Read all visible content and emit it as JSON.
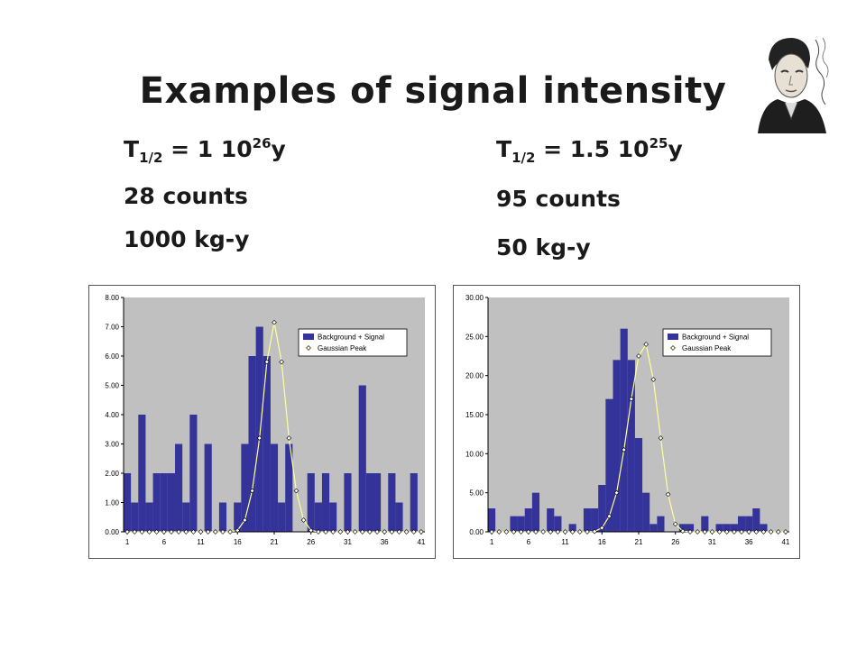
{
  "title": "Examples of signal intensity",
  "left_stats": {
    "t_label": "T",
    "t_sub": "1/2",
    "t_eq": " = 1 10",
    "t_exp": "26",
    "t_unit": "y",
    "counts": "28 counts",
    "exposure": "1000 kg-y"
  },
  "right_stats": {
    "t_label": "T",
    "t_sub": "1/2",
    "t_eq": " = 1.5 10",
    "t_exp": "25",
    "t_unit": "y",
    "counts": "95 counts",
    "exposure": "50 kg-y"
  },
  "portrait_icon": "person-portrait-with-signature",
  "colors": {
    "bar": "#333399",
    "plot_bg": "#c0c0c0",
    "gaussian_line": "#ffff99"
  },
  "chart_data": [
    {
      "type": "bar",
      "x": [
        1,
        2,
        3,
        4,
        5,
        6,
        7,
        8,
        9,
        10,
        11,
        12,
        13,
        14,
        15,
        16,
        17,
        18,
        19,
        20,
        21,
        22,
        23,
        24,
        25,
        26,
        27,
        28,
        29,
        30,
        31,
        32,
        33,
        34,
        35,
        36,
        37,
        38,
        39,
        40,
        41
      ],
      "xticks": [
        "1",
        "6",
        "11",
        "16",
        "21",
        "26",
        "31",
        "36",
        "41"
      ],
      "yticks": [
        "0.00",
        "1.00",
        "2.00",
        "3.00",
        "4.00",
        "5.00",
        "6.00",
        "7.00",
        "8.00"
      ],
      "ylim": [
        0,
        8
      ],
      "legend_position": "top-right",
      "series": [
        {
          "name": "Background + Signal",
          "kind": "bar",
          "values": [
            2,
            1,
            4,
            1,
            2,
            2,
            2,
            3,
            1,
            4,
            0,
            3,
            0,
            1,
            0,
            1,
            3,
            6,
            7,
            6,
            3,
            1,
            3,
            0,
            0,
            2,
            1,
            2,
            1,
            0,
            2,
            0,
            5,
            2,
            2,
            0,
            2,
            1,
            0,
            2,
            0
          ]
        },
        {
          "name": "Gaussian Peak",
          "kind": "line-markers",
          "values": [
            0,
            0,
            0,
            0,
            0,
            0,
            0,
            0,
            0,
            0,
            0,
            0,
            0,
            0,
            0,
            0.05,
            0.4,
            1.4,
            3.2,
            5.8,
            7.15,
            5.8,
            3.2,
            1.4,
            0.4,
            0.05,
            0,
            0,
            0,
            0,
            0,
            0,
            0,
            0,
            0,
            0,
            0,
            0,
            0,
            0,
            0
          ]
        }
      ]
    },
    {
      "type": "bar",
      "x": [
        1,
        2,
        3,
        4,
        5,
        6,
        7,
        8,
        9,
        10,
        11,
        12,
        13,
        14,
        15,
        16,
        17,
        18,
        19,
        20,
        21,
        22,
        23,
        24,
        25,
        26,
        27,
        28,
        29,
        30,
        31,
        32,
        33,
        34,
        35,
        36,
        37,
        38,
        39,
        40,
        41
      ],
      "xticks": [
        "1",
        "6",
        "11",
        "16",
        "21",
        "26",
        "31",
        "36",
        "41"
      ],
      "yticks": [
        "0.00",
        "5.00",
        "10.00",
        "15.00",
        "20.00",
        "25.00",
        "30.00"
      ],
      "ylim": [
        0,
        30
      ],
      "legend_position": "top-right",
      "series": [
        {
          "name": "Background + Signal",
          "kind": "bar",
          "values": [
            3,
            0,
            0,
            2,
            2,
            3,
            5,
            0,
            3,
            2,
            0,
            1,
            0,
            3,
            3,
            6,
            17,
            22,
            26,
            22,
            12,
            5,
            1,
            2,
            0,
            0,
            1,
            1,
            0,
            2,
            0,
            1,
            1,
            1,
            2,
            2,
            3,
            1,
            0,
            0,
            0
          ]
        },
        {
          "name": "Gaussian Peak",
          "kind": "line-markers",
          "values": [
            0,
            0,
            0,
            0,
            0,
            0,
            0,
            0,
            0,
            0,
            0,
            0,
            0,
            0,
            0.05,
            0.5,
            2,
            5,
            10.5,
            17,
            22.5,
            24,
            19.5,
            12,
            4.8,
            1,
            0.1,
            0,
            0,
            0,
            0,
            0,
            0,
            0,
            0,
            0,
            0,
            0,
            0,
            0,
            0
          ]
        }
      ]
    }
  ]
}
